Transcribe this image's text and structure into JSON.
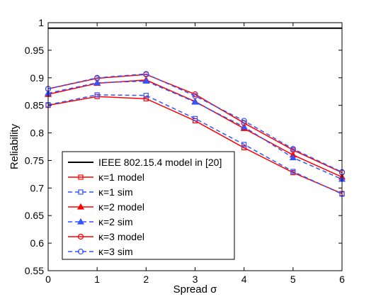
{
  "chart_data": {
    "type": "line",
    "title": "",
    "xlabel": "Spread σ",
    "ylabel": "Reliability",
    "xlim": [
      0,
      6
    ],
    "ylim": [
      0.55,
      1.0
    ],
    "xticks": [
      "0",
      "1",
      "2",
      "3",
      "4",
      "5",
      "6"
    ],
    "yticks": [
      "0.55",
      "0.6",
      "0.65",
      "0.7",
      "0.75",
      "0.8",
      "0.85",
      "0.9",
      "0.95",
      "1"
    ],
    "grid": false,
    "legend_position": "bottom-left",
    "x": [
      0,
      1,
      2,
      3,
      4,
      5,
      6
    ],
    "series": [
      {
        "name": "IEEE 802.15.4 model in [20]",
        "values": [
          0.99,
          0.99,
          0.99,
          0.99,
          0.99,
          0.99,
          0.99
        ],
        "color": "#000000",
        "dash": "solid",
        "marker": "none"
      },
      {
        "name": "κ=1 model",
        "values": [
          0.85,
          0.866,
          0.862,
          0.822,
          0.773,
          0.728,
          0.69
        ],
        "color": "#ff0000",
        "dash": "solid",
        "marker": "square"
      },
      {
        "name": "κ=1 sim",
        "values": [
          0.851,
          0.869,
          0.868,
          0.826,
          0.779,
          0.73,
          0.689
        ],
        "color": "#3355ff",
        "dash": "dashed",
        "marker": "square"
      },
      {
        "name": "κ=2 model",
        "values": [
          0.87,
          0.89,
          0.896,
          0.857,
          0.808,
          0.76,
          0.72
        ],
        "color": "#ff0000",
        "dash": "solid",
        "marker": "triangle"
      },
      {
        "name": "κ=2 sim",
        "values": [
          0.872,
          0.891,
          0.894,
          0.856,
          0.811,
          0.755,
          0.716
        ],
        "color": "#3355ff",
        "dash": "dashed",
        "marker": "triangle"
      },
      {
        "name": "κ=3 model",
        "values": [
          0.88,
          0.899,
          0.906,
          0.87,
          0.818,
          0.769,
          0.728
        ],
        "color": "#ff0000",
        "dash": "solid",
        "marker": "circle"
      },
      {
        "name": "κ=3 sim",
        "values": [
          0.88,
          0.9,
          0.907,
          0.867,
          0.822,
          0.771,
          0.729
        ],
        "color": "#3355ff",
        "dash": "dashed",
        "marker": "circle"
      }
    ]
  }
}
